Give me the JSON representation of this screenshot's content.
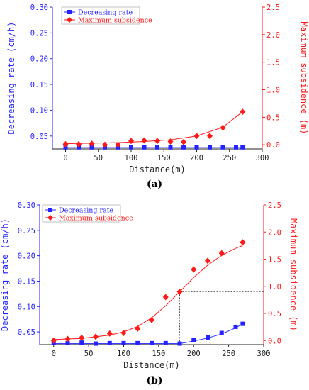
{
  "colors": {
    "left": "#2323ff",
    "right": "#ff1a1a",
    "text": "#222222"
  },
  "chart_data": [
    {
      "type": "line",
      "caption": "(a)",
      "xlabel": "Distance(m)",
      "ylabel_left": "Decreasing rate (cm/h)",
      "ylabel_right": "Maximum subsidence (m)",
      "xlim": [
        -20,
        300
      ],
      "ylim_left": [
        0.025,
        0.3
      ],
      "ylim_right": [
        -0.075,
        2.5
      ],
      "x_ticks": [
        0,
        50,
        100,
        150,
        200,
        250,
        300
      ],
      "y_left_ticks": [
        0.05,
        0.1,
        0.15,
        0.2,
        0.25,
        0.3
      ],
      "y_right_ticks": [
        0.0,
        0.5,
        1.0,
        1.5,
        2.0,
        2.5
      ],
      "legend": [
        "Decreasing rate",
        "Maximum subsidence"
      ],
      "series": [
        {
          "name": "Decreasing rate",
          "axis": "left",
          "marker": "square",
          "x": [
            0,
            20,
            40,
            60,
            80,
            100,
            120,
            140,
            160,
            180,
            200,
            220,
            240,
            260,
            270
          ],
          "values": [
            0.028,
            0.028,
            0.028,
            0.028,
            0.028,
            0.028,
            0.028,
            0.028,
            0.028,
            0.028,
            0.028,
            0.028,
            0.028,
            0.028,
            0.028
          ]
        },
        {
          "name": "Maximum subsidence",
          "axis": "right",
          "marker": "diamond",
          "x": [
            0,
            20,
            40,
            60,
            80,
            100,
            120,
            140,
            160,
            180,
            200,
            220,
            240,
            270
          ],
          "values": [
            0.01,
            0.01,
            0.02,
            0.0,
            0.0,
            0.07,
            0.08,
            0.07,
            0.06,
            0.05,
            0.16,
            0.16,
            0.31,
            0.6
          ],
          "fit_x": [
            0,
            40,
            80,
            120,
            160,
            200,
            240,
            270
          ],
          "fit_values": [
            0.02,
            0.03,
            0.04,
            0.06,
            0.09,
            0.16,
            0.32,
            0.6
          ]
        }
      ]
    },
    {
      "type": "line",
      "caption": "(b)",
      "xlabel": "Distance(m)",
      "ylabel_left": "Decreasing rate (cm/h)",
      "ylabel_right": "Maximum subsidence (m)",
      "xlim": [
        -20,
        300
      ],
      "ylim_left": [
        0.025,
        0.3
      ],
      "ylim_right": [
        -0.075,
        2.5
      ],
      "x_ticks": [
        0,
        50,
        100,
        150,
        200,
        250,
        300
      ],
      "y_left_ticks": [
        0.05,
        0.1,
        0.15,
        0.2,
        0.25,
        0.3
      ],
      "y_right_ticks": [
        0.0,
        0.5,
        1.0,
        1.5,
        2.0,
        2.5
      ],
      "legend": [
        "Decreasing rate",
        "Maximum subsidence"
      ],
      "reference_point": {
        "x": 180,
        "y": 0.9
      },
      "series": [
        {
          "name": "Decreasing rate",
          "axis": "left",
          "marker": "square",
          "x": [
            0,
            20,
            40,
            60,
            80,
            100,
            120,
            140,
            160,
            180,
            200,
            220,
            240,
            260,
            270
          ],
          "values": [
            0.028,
            0.028,
            0.029,
            0.027,
            0.028,
            0.028,
            0.028,
            0.028,
            0.028,
            0.027,
            0.034,
            0.039,
            0.048,
            0.06,
            0.066
          ],
          "fit_x": [
            0,
            40,
            80,
            120,
            160,
            180,
            200,
            220,
            240,
            260,
            270
          ],
          "fit_values": [
            0.027,
            0.027,
            0.027,
            0.027,
            0.027,
            0.027,
            0.032,
            0.038,
            0.046,
            0.058,
            0.066
          ]
        },
        {
          "name": "Maximum subsidence",
          "axis": "right",
          "marker": "diamond",
          "x": [
            0,
            20,
            40,
            60,
            80,
            100,
            120,
            140,
            160,
            180,
            200,
            220,
            240,
            270
          ],
          "values": [
            0.0,
            0.03,
            0.05,
            0.07,
            0.13,
            0.14,
            0.22,
            0.38,
            0.8,
            0.9,
            1.31,
            1.47,
            1.61,
            1.81
          ],
          "fit_x": [
            0,
            20,
            40,
            60,
            80,
            100,
            120,
            140,
            160,
            180,
            200,
            220,
            240,
            260,
            270
          ],
          "fit_values": [
            0.02,
            0.03,
            0.04,
            0.07,
            0.1,
            0.16,
            0.26,
            0.42,
            0.64,
            0.9,
            1.16,
            1.39,
            1.57,
            1.7,
            1.75
          ]
        }
      ]
    }
  ]
}
